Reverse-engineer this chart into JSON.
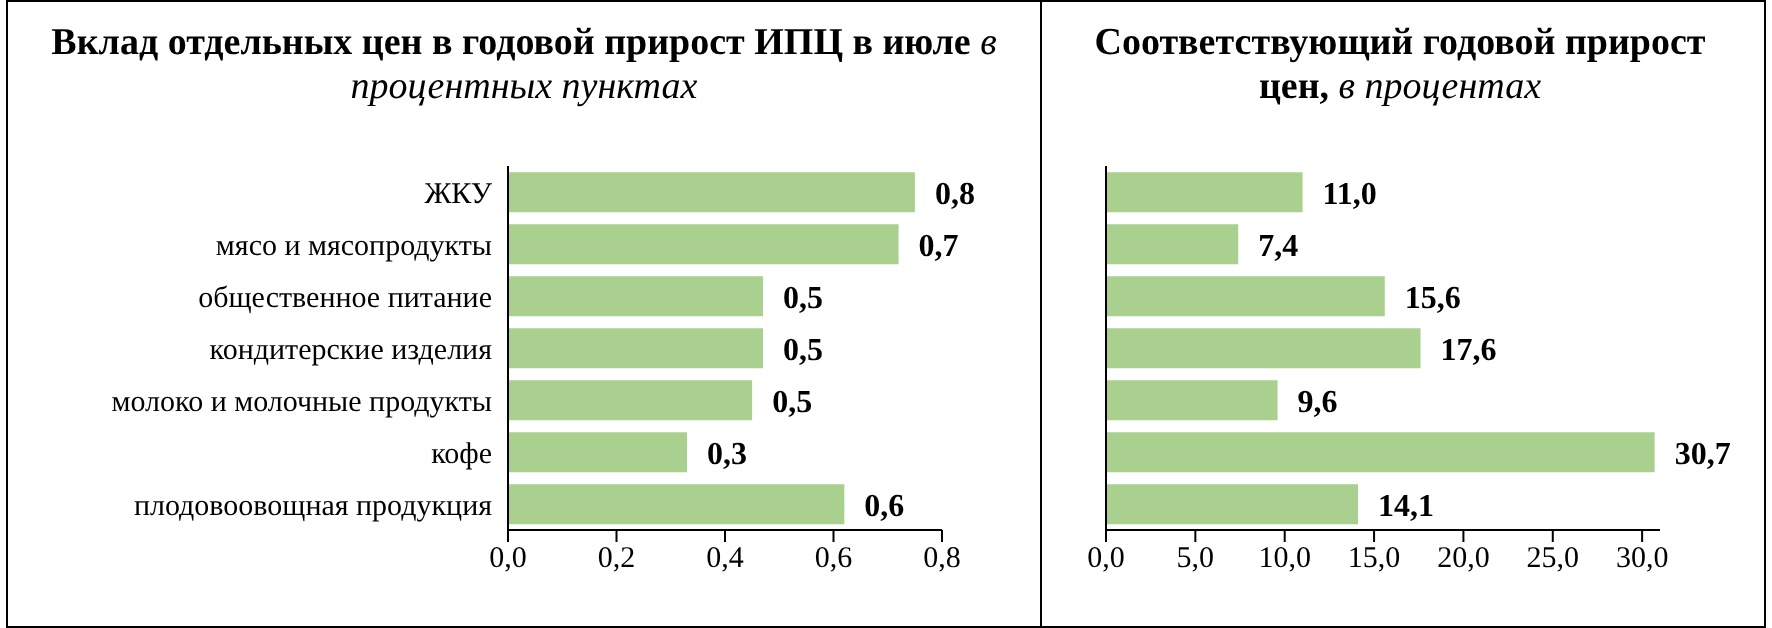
{
  "chart_data": [
    {
      "type": "bar",
      "orientation": "horizontal",
      "title": "Вклад отдельных цен в годовой прирост ИПЦ в июле",
      "subtitle": "в процентных пунктах",
      "categories": [
        "ЖКУ",
        "мясо и мясопродукты",
        "общественное питание",
        "кондитерские изделия",
        "молоко и молочные продукты",
        "кофе",
        "плодовоовощная продукция"
      ],
      "values": [
        0.75,
        0.72,
        0.47,
        0.47,
        0.45,
        0.33,
        0.62
      ],
      "value_labels": [
        "0,8",
        "0,7",
        "0,5",
        "0,5",
        "0,5",
        "0,3",
        "0,6"
      ],
      "color": "#a9d08e",
      "xlim": [
        0,
        0.8
      ],
      "xticks": [
        {
          "value": 0,
          "label": "0,0"
        },
        {
          "value": 0.2,
          "label": "0,2"
        },
        {
          "value": 0.4,
          "label": "0,4"
        },
        {
          "value": 0.6,
          "label": "0,6"
        },
        {
          "value": 0.8,
          "label": "0,8"
        }
      ],
      "grid": false,
      "legend": false
    },
    {
      "type": "bar",
      "orientation": "horizontal",
      "title": "Соответствующий годовой прирост цен,",
      "subtitle": "в процентах",
      "categories": [
        null,
        null,
        null,
        null,
        null,
        null,
        null
      ],
      "values": [
        11.0,
        7.4,
        15.6,
        17.6,
        9.6,
        30.7,
        14.1
      ],
      "value_labels": [
        "11,0",
        "7,4",
        "15,6",
        "17,6",
        "9,6",
        "30,7",
        "14,1"
      ],
      "color": "#a9d08e",
      "xlim": [
        0,
        31
      ],
      "xticks": [
        {
          "value": 0,
          "label": "0,0"
        },
        {
          "value": 5,
          "label": "5,0"
        },
        {
          "value": 10,
          "label": "10,0"
        },
        {
          "value": 15,
          "label": "15,0"
        },
        {
          "value": 20,
          "label": "20,0"
        },
        {
          "value": 25,
          "label": "25,0"
        },
        {
          "value": 30,
          "label": "30,0"
        }
      ],
      "tick_labels": "x",
      "grid": false,
      "legend": false
    }
  ]
}
